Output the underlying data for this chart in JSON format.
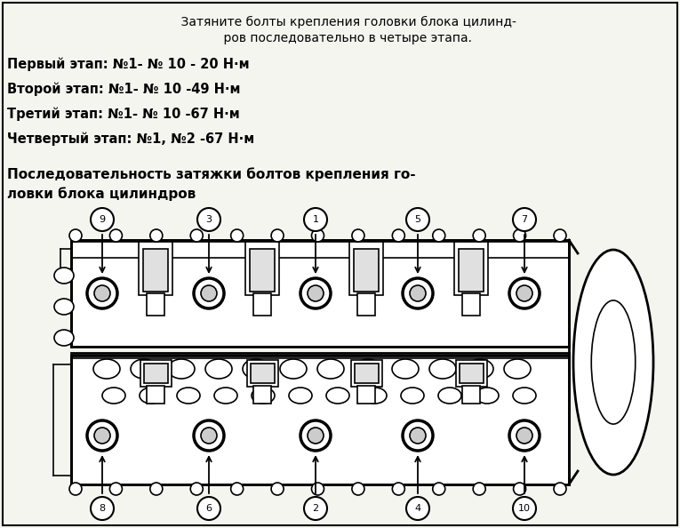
{
  "background_color": "#f5f5f0",
  "title_text_line1": "    Затяните болты крепления головки блока цилинд-",
  "title_text_line2": "    ров последовательно в четыре этапа.",
  "steps": [
    "Первый этап: №1- № 10 - 20 Н·м",
    "Второй этап: №1- № 10 -49 Н·м",
    "Третий этап: №1- № 10 -67 Н·м",
    "Четвертый этап: №1, №2 -67 Н·м"
  ],
  "subtitle_line1": "Последовательность затяжки болтов крепления го-",
  "subtitle_line2": "ловки блока цилиндров",
  "top_bolt_numbers": [
    "9",
    "3",
    "1",
    "5",
    "7"
  ],
  "bottom_bolt_numbers": [
    "8",
    "6",
    "2",
    "4",
    "10"
  ]
}
